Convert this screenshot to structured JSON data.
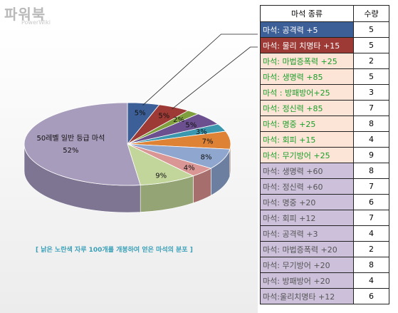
{
  "watermark": {
    "main": "파워북",
    "sub": "PowerWiki"
  },
  "chart_data": {
    "type": "pie",
    "caption": "[ 낡은 노란색 자루 100개를 개봉하여 얻은 마석의 분포 ]",
    "slices": [
      {
        "label": "5%",
        "value": 5,
        "color": "#3c5f98",
        "side": "#2b4672"
      },
      {
        "label": "5%",
        "value": 5,
        "color": "#9e3a35",
        "side": "#742a27"
      },
      {
        "label": "2%",
        "value": 2,
        "color": "#7f9e3d",
        "side": "#5e762d"
      },
      {
        "label": "5%",
        "value": 5,
        "color": "#6b4f8e",
        "side": "#4f3a69"
      },
      {
        "label": "3%",
        "value": 3,
        "color": "#3b97ad",
        "side": "#2b7081"
      },
      {
        "label": "7%",
        "value": 7,
        "color": "#de8236",
        "side": "#a86127"
      },
      {
        "label": "8%",
        "value": 8,
        "color": "#8fa6cf",
        "side": "#6d7fa0"
      },
      {
        "label": "4%",
        "value": 4,
        "color": "#d99694",
        "side": "#a66f6d"
      },
      {
        "label": "9%",
        "value": 9,
        "color": "#c2d59b",
        "side": "#94a474"
      },
      {
        "label": "52%",
        "value": 52,
        "color": "#a89cbc",
        "side": "#7e7592",
        "inner_title": "50레벨 일반 등급 마석"
      }
    ]
  },
  "table": {
    "header": {
      "name": "마석 종류",
      "count": "수량"
    },
    "rows": [
      {
        "name": "마석: 공격력 +5",
        "count": "5",
        "bg": "#3c5f98",
        "fg": "#ffffff"
      },
      {
        "name": "마석: 물리 치명타 +15",
        "count": "5",
        "bg": "#9e3a35",
        "fg": "#ffffff"
      },
      {
        "name": "마석: 마법증폭력 +25",
        "count": "2",
        "bg": "#fce4d6",
        "fg": "#1a9e2a"
      },
      {
        "name": "마석: 생명력 +85",
        "count": "5",
        "bg": "#fce4d6",
        "fg": "#1a9e2a"
      },
      {
        "name": "마석 : 방패방어+25",
        "count": "3",
        "bg": "#fce4d6",
        "fg": "#1a9e2a"
      },
      {
        "name": "마석: 정신력 +85",
        "count": "7",
        "bg": "#fce4d6",
        "fg": "#1a9e2a"
      },
      {
        "name": "마석: 명중 +25",
        "count": "8",
        "bg": "#fce4d6",
        "fg": "#1a9e2a"
      },
      {
        "name": "마석: 회피 +15",
        "count": "4",
        "bg": "#fce4d6",
        "fg": "#1a9e2a"
      },
      {
        "name": "마석: 무기방어 +25",
        "count": "9",
        "bg": "#fce4d6",
        "fg": "#1a9e2a"
      },
      {
        "name": "마석: 생명력 +60",
        "count": "8",
        "bg": "#ccc0da",
        "fg": "#555555"
      },
      {
        "name": "마석: 정신력 +60",
        "count": "7",
        "bg": "#ccc0da",
        "fg": "#555555"
      },
      {
        "name": "마석: 명중 +20",
        "count": "6",
        "bg": "#ccc0da",
        "fg": "#555555"
      },
      {
        "name": "마석: 회피 +12",
        "count": "7",
        "bg": "#ccc0da",
        "fg": "#555555"
      },
      {
        "name": "마석: 공격력 +3",
        "count": "4",
        "bg": "#ccc0da",
        "fg": "#555555"
      },
      {
        "name": "마석: 마법증폭력 +20",
        "count": "2",
        "bg": "#ccc0da",
        "fg": "#555555"
      },
      {
        "name": "마석: 무기방어 +20",
        "count": "8",
        "bg": "#ccc0da",
        "fg": "#555555"
      },
      {
        "name": "마석: 방패방어 +20",
        "count": "4",
        "bg": "#ccc0da",
        "fg": "#555555"
      },
      {
        "name": "마석:울리치명타 +12",
        "count": "6",
        "bg": "#ccc0da",
        "fg": "#555555"
      }
    ]
  }
}
